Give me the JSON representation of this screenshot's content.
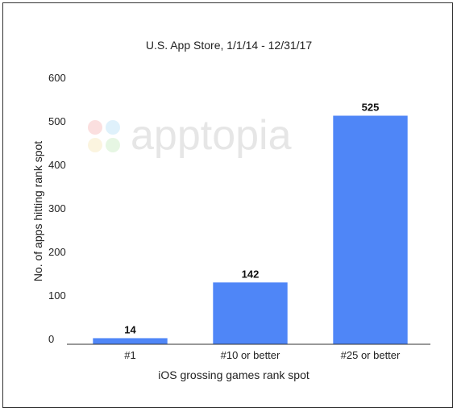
{
  "watermark": {
    "text": "apptopia"
  },
  "chart_data": {
    "type": "bar",
    "title": "U.S. App Store, 1/1/14 - 12/31/17",
    "xlabel": "iOS grossing games rank spot",
    "ylabel": "No. of apps hitting rank spot",
    "categories": [
      "#1",
      "#10 or better",
      "#25 or better"
    ],
    "values": [
      14,
      142,
      525
    ],
    "data_labels": [
      "14",
      "142",
      "525"
    ],
    "ylim": [
      0,
      600
    ],
    "yticks": [
      "0",
      "100",
      "200",
      "300",
      "400",
      "500",
      "600"
    ],
    "grid": false,
    "bar_color": "#4f86f7"
  }
}
